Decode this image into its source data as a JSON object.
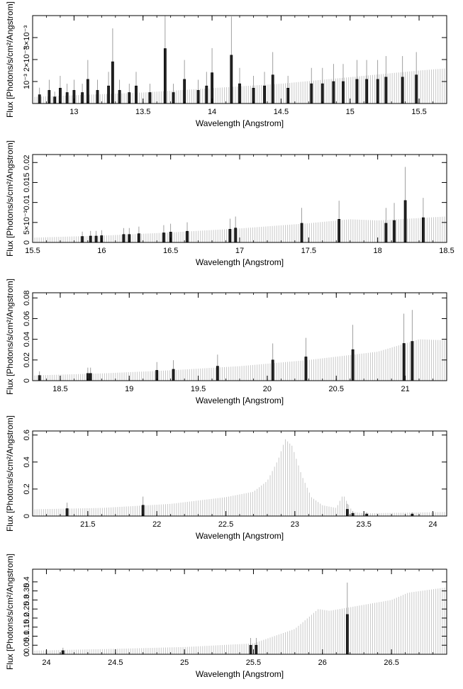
{
  "chart_data": [
    {
      "type": "bar",
      "xlabel": "Wavelength [Angstrom]",
      "ylabel": "Flux [Photons/s/cm²/Angstrom]",
      "xlim": [
        12.7,
        15.7
      ],
      "ylim": [
        0,
        0.004
      ],
      "xticks": [
        13,
        13.5,
        14,
        14.5,
        15,
        15.5
      ],
      "xtick_labels": [
        "13",
        "13.5",
        "14",
        "14.5",
        "15",
        "15.5"
      ],
      "yticks": [
        0.001,
        0.002,
        0.003
      ],
      "ytick_labels": [
        "10⁻³",
        "2×10⁻³",
        "3×10⁻³"
      ],
      "model": {
        "x": [
          12.7,
          13.5,
          14.0,
          14.5,
          15.0,
          15.5,
          15.7
        ],
        "y": [
          0.0003,
          0.0005,
          0.0007,
          0.0009,
          0.0012,
          0.0015,
          0.0016
        ]
      },
      "bars": [
        [
          12.75,
          0.0004
        ],
        [
          12.82,
          0.0006
        ],
        [
          12.86,
          0.0003
        ],
        [
          12.9,
          0.0007
        ],
        [
          12.95,
          0.0005
        ],
        [
          13.0,
          0.0006
        ],
        [
          13.06,
          0.0005
        ],
        [
          13.1,
          0.0011
        ],
        [
          13.17,
          0.0006
        ],
        [
          13.25,
          0.0008
        ],
        [
          13.28,
          0.0019
        ],
        [
          13.33,
          0.0006
        ],
        [
          13.4,
          0.0005
        ],
        [
          13.45,
          0.0008
        ],
        [
          13.55,
          0.0005
        ],
        [
          13.66,
          0.0025
        ],
        [
          13.72,
          0.0005
        ],
        [
          13.8,
          0.0011
        ],
        [
          13.9,
          0.0006
        ],
        [
          13.96,
          0.0008
        ],
        [
          14.0,
          0.0014
        ],
        [
          14.14,
          0.0022
        ],
        [
          14.2,
          0.0009
        ],
        [
          14.3,
          0.0007
        ],
        [
          14.38,
          0.0008
        ],
        [
          14.44,
          0.0013
        ],
        [
          14.55,
          0.0007
        ],
        [
          14.72,
          0.0009
        ],
        [
          14.8,
          0.0009
        ],
        [
          14.88,
          0.001
        ],
        [
          14.95,
          0.001
        ],
        [
          15.05,
          0.0011
        ],
        [
          15.12,
          0.0011
        ],
        [
          15.2,
          0.0011
        ],
        [
          15.26,
          0.0012
        ],
        [
          15.38,
          0.0012
        ],
        [
          15.48,
          0.0013
        ]
      ]
    },
    {
      "type": "bar",
      "xlabel": "Wavelength [Angstrom]",
      "ylabel": "Flux [Photons/s/cm²/Angstrom]",
      "xlim": [
        15.5,
        18.5
      ],
      "ylim": [
        0,
        0.022
      ],
      "xticks": [
        15.5,
        16,
        16.5,
        17,
        17.5,
        18,
        18.5
      ],
      "xtick_labels": [
        "15.5",
        "16",
        "16.5",
        "17",
        "17.5",
        "18",
        "18.5"
      ],
      "yticks": [
        0,
        0.005,
        0.01,
        0.015,
        0.02
      ],
      "ytick_labels": [
        "0",
        "5×10⁻³",
        "0.01",
        "0.015",
        "0.02"
      ],
      "model": {
        "x": [
          15.5,
          16.0,
          16.5,
          17.0,
          17.5,
          17.8,
          18.0,
          18.5
        ],
        "y": [
          0.0012,
          0.0017,
          0.0025,
          0.0035,
          0.0048,
          0.0058,
          0.0055,
          0.0065
        ]
      },
      "bars": [
        [
          15.86,
          0.0015
        ],
        [
          15.92,
          0.0016
        ],
        [
          15.96,
          0.0016
        ],
        [
          16.0,
          0.0017
        ],
        [
          16.16,
          0.002
        ],
        [
          16.2,
          0.002
        ],
        [
          16.27,
          0.0022
        ],
        [
          16.45,
          0.0024
        ],
        [
          16.5,
          0.0026
        ],
        [
          16.62,
          0.0028
        ],
        [
          16.93,
          0.0033
        ],
        [
          16.97,
          0.0036
        ],
        [
          17.45,
          0.0048
        ],
        [
          17.72,
          0.0058
        ],
        [
          18.06,
          0.0048
        ],
        [
          18.12,
          0.0055
        ],
        [
          18.2,
          0.0105
        ],
        [
          18.33,
          0.0062
        ]
      ]
    },
    {
      "type": "bar",
      "xlabel": "Wavelength [Angstrom]",
      "ylabel": "Flux [Photons/s/cm²/Angstrom]",
      "xlim": [
        18.3,
        21.3
      ],
      "ylim": [
        0,
        0.085
      ],
      "xticks": [
        18.5,
        19,
        19.5,
        20,
        20.5,
        21
      ],
      "xtick_labels": [
        "18.5",
        "19",
        "19.5",
        "20",
        "20.5",
        "21"
      ],
      "yticks": [
        0,
        0.02,
        0.04,
        0.06,
        0.08
      ],
      "ytick_labels": [
        "0",
        "0.02",
        "0.04",
        "0.06",
        "0.08"
      ],
      "model": {
        "x": [
          18.3,
          18.8,
          19.3,
          19.8,
          20.3,
          20.8,
          21.1,
          21.3
        ],
        "y": [
          0.005,
          0.007,
          0.01,
          0.014,
          0.02,
          0.028,
          0.04,
          0.039
        ]
      },
      "bars": [
        [
          18.35,
          0.005
        ],
        [
          18.7,
          0.007
        ],
        [
          18.72,
          0.007
        ],
        [
          19.2,
          0.01
        ],
        [
          19.32,
          0.011
        ],
        [
          19.64,
          0.014
        ],
        [
          20.04,
          0.02
        ],
        [
          20.28,
          0.023
        ],
        [
          20.62,
          0.03
        ],
        [
          20.99,
          0.036
        ],
        [
          21.05,
          0.038
        ]
      ]
    },
    {
      "type": "bar",
      "xlabel": "Wavelength [Angstrom]",
      "ylabel": "Flux [Photons/s/cm²/Angstrom]",
      "xlim": [
        21.1,
        24.1
      ],
      "ylim": [
        0,
        0.63
      ],
      "xticks": [
        21.5,
        22,
        22.5,
        23,
        23.5,
        24
      ],
      "xtick_labels": [
        "21.5",
        "22",
        "22.5",
        "23",
        "23.5",
        "24"
      ],
      "yticks": [
        0,
        0.2,
        0.4,
        0.6
      ],
      "ytick_labels": [
        "0",
        "0.2",
        "0.4",
        "0.6"
      ],
      "model": {
        "x": [
          21.1,
          21.6,
          22.1,
          22.5,
          22.7,
          22.8,
          22.88,
          22.93,
          22.98,
          23.05,
          23.12,
          23.2,
          23.3,
          23.35,
          23.38,
          23.42,
          23.5,
          24.1
        ],
        "y": [
          0.05,
          0.06,
          0.09,
          0.14,
          0.18,
          0.26,
          0.42,
          0.57,
          0.52,
          0.3,
          0.14,
          0.08,
          0.06,
          0.16,
          0.1,
          0.03,
          0.02,
          0.03
        ]
      },
      "bars": [
        [
          21.35,
          0.055
        ],
        [
          21.9,
          0.08
        ],
        [
          23.38,
          0.05
        ],
        [
          23.42,
          0.02
        ],
        [
          23.52,
          0.015
        ],
        [
          23.85,
          0.015
        ]
      ]
    },
    {
      "type": "bar",
      "xlabel": "Wavelength [Angstrom]",
      "ylabel": "Flux [Photons/s/cm²/Angstrom]",
      "xlim": [
        23.9,
        26.9
      ],
      "ylim": [
        0,
        0.47
      ],
      "xticks": [
        24,
        24.5,
        25,
        25.5,
        26,
        26.5
      ],
      "xtick_labels": [
        "24",
        "24.5",
        "25",
        "25.5",
        "26",
        "26.5"
      ],
      "yticks": [
        0,
        0.05,
        0.1,
        0.15,
        0.2,
        0.25,
        0.3,
        0.35,
        0.4
      ],
      "ytick_labels": [
        "0",
        "0.05",
        "0.1",
        "0.15",
        "0.2",
        "0.25",
        "0.3",
        "0.35",
        "0.4"
      ],
      "model": {
        "x": [
          23.9,
          24.5,
          25.0,
          25.5,
          25.8,
          25.97,
          26.05,
          26.2,
          26.5,
          26.62,
          26.9
        ],
        "y": [
          0.02,
          0.03,
          0.04,
          0.06,
          0.14,
          0.25,
          0.24,
          0.26,
          0.3,
          0.34,
          0.37
        ]
      },
      "bars": [
        [
          24.12,
          0.02
        ],
        [
          25.48,
          0.05
        ],
        [
          25.52,
          0.05
        ],
        [
          26.18,
          0.22
        ]
      ]
    }
  ]
}
